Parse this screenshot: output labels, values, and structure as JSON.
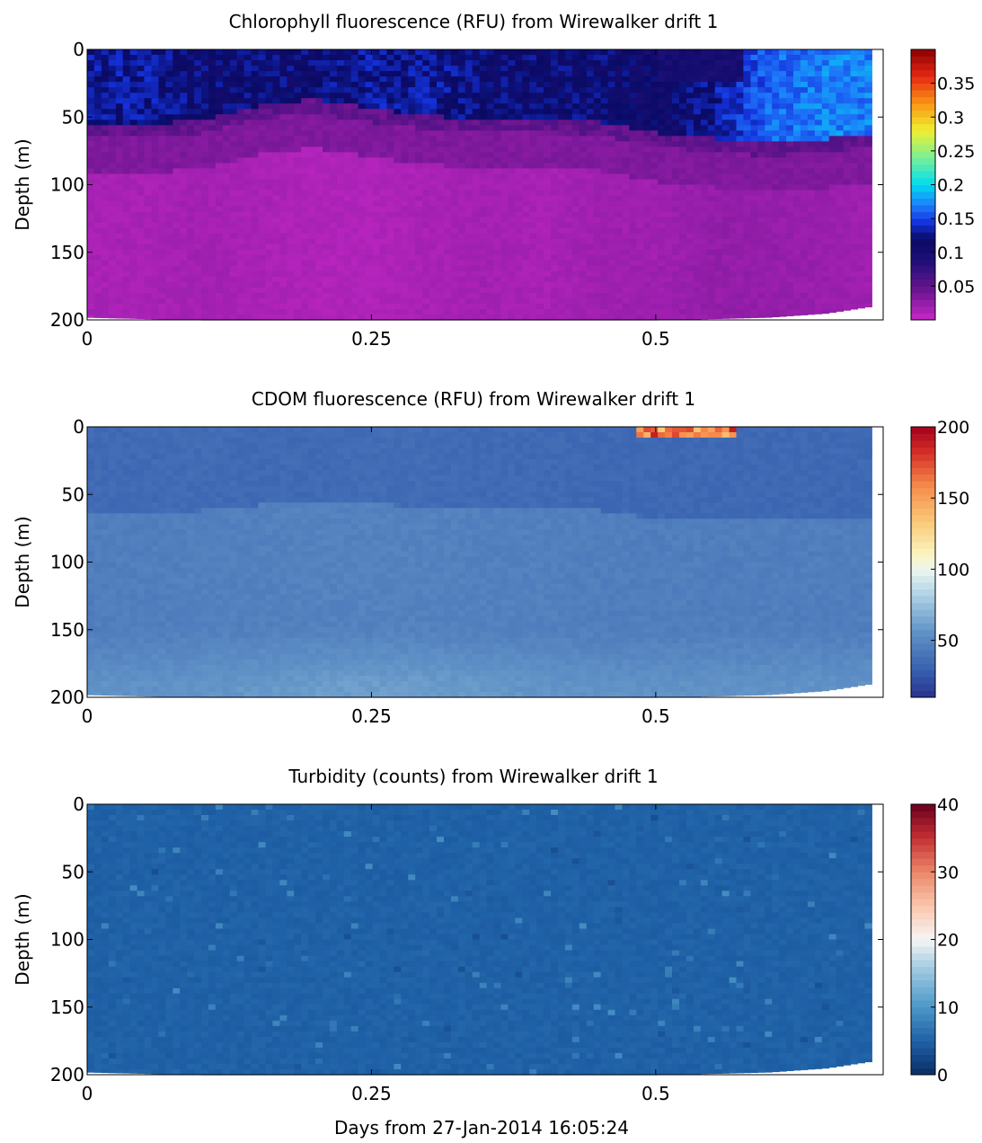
{
  "figure": {
    "xlabel": "Days from 27-Jan-2014 16:05:24"
  },
  "chart_data": [
    {
      "type": "heatmap",
      "title": "Chlorophyll fluorescence (RFU) from Wirewalker drift 1",
      "xlabel": "",
      "ylabel": "Depth (m)",
      "xlim": [
        0,
        0.7
      ],
      "ylim": [
        200,
        0
      ],
      "y_reversed": true,
      "x_ticks": [
        0,
        0.25,
        0.5
      ],
      "x_tick_labels": [
        "0",
        "0.25",
        "0.5"
      ],
      "y_ticks": [
        0,
        50,
        100,
        150,
        200
      ],
      "y_tick_labels": [
        "0",
        "50",
        "100",
        "150",
        "200"
      ],
      "colorbar": {
        "colormap": "chlorophyll",
        "range": [
          0,
          0.4
        ],
        "ticks": [
          0.05,
          0.1,
          0.15,
          0.2,
          0.25,
          0.3,
          0.35
        ],
        "tick_labels": [
          "0.05",
          "0.1",
          "0.15",
          "0.2",
          "0.25",
          "0.3",
          "0.35"
        ]
      },
      "profiles": {
        "x": [
          0.0,
          0.05,
          0.1,
          0.15,
          0.2,
          0.25,
          0.3,
          0.35,
          0.4,
          0.45,
          0.5,
          0.55,
          0.6,
          0.65,
          0.69
        ],
        "max_depth": [
          198,
          199,
          200,
          200,
          200,
          200,
          200,
          200,
          200,
          200,
          200,
          199,
          198,
          195,
          190
        ],
        "layer_depth": [
          60,
          62,
          58,
          48,
          43,
          50,
          55,
          58,
          57,
          60,
          68,
          72,
          75,
          72,
          68
        ],
        "surface_value": [
          0.13,
          0.13,
          0.12,
          0.12,
          0.12,
          0.13,
          0.13,
          0.12,
          0.12,
          0.12,
          0.11,
          0.13,
          0.16,
          0.17,
          0.17
        ],
        "deep_value": [
          0.015,
          0.015,
          0.018,
          0.015,
          0.012,
          0.012,
          0.015,
          0.018,
          0.015,
          0.02,
          0.02,
          0.025,
          0.025,
          0.022,
          0.02
        ]
      },
      "surface_patch": {
        "x": [
          0.5,
          0.58
        ],
        "value": 0.1
      }
    },
    {
      "type": "heatmap",
      "title": "CDOM fluorescence (RFU) from Wirewalker drift 1",
      "xlabel": "",
      "ylabel": "Depth (m)",
      "xlim": [
        0,
        0.7
      ],
      "ylim": [
        200,
        0
      ],
      "y_reversed": true,
      "x_ticks": [
        0,
        0.25,
        0.5
      ],
      "x_tick_labels": [
        "0",
        "0.25",
        "0.5"
      ],
      "y_ticks": [
        0,
        50,
        100,
        150,
        200
      ],
      "y_tick_labels": [
        "0",
        "50",
        "100",
        "150",
        "200"
      ],
      "colorbar": {
        "colormap": "diverging_rdylbu",
        "range": [
          10,
          200
        ],
        "ticks": [
          50,
          100,
          150,
          200
        ],
        "tick_labels": [
          "50",
          "100",
          "150",
          "200"
        ]
      },
      "profiles": {
        "x": [
          0.0,
          0.05,
          0.1,
          0.15,
          0.2,
          0.25,
          0.3,
          0.35,
          0.4,
          0.45,
          0.5,
          0.55,
          0.6,
          0.65,
          0.69
        ],
        "max_depth": [
          198,
          199,
          200,
          200,
          200,
          200,
          200,
          200,
          200,
          200,
          200,
          199,
          198,
          195,
          190
        ],
        "layer_depth": [
          65,
          65,
          62,
          58,
          55,
          57,
          60,
          62,
          60,
          62,
          68,
          70,
          70,
          70,
          68
        ],
        "surface_value": [
          35,
          35,
          36,
          35,
          35,
          36,
          36,
          35,
          35,
          34,
          34,
          34,
          34,
          34,
          34
        ],
        "mid_value": [
          45,
          45,
          46,
          46,
          47,
          47,
          47,
          46,
          46,
          45,
          45,
          45,
          45,
          45,
          45
        ],
        "deep_value": [
          55,
          55,
          56,
          58,
          60,
          60,
          60,
          58,
          56,
          55,
          55,
          55,
          55,
          55,
          55
        ]
      },
      "surface_patch": {
        "x": [
          0.48,
          0.57
        ],
        "depth": [
          0,
          8
        ],
        "value": 190
      }
    },
    {
      "type": "heatmap",
      "title": "Turbidity (counts) from Wirewalker drift 1",
      "xlabel": "Days from 27-Jan-2014 16:05:24",
      "ylabel": "Depth (m)",
      "xlim": [
        0,
        0.7
      ],
      "ylim": [
        200,
        0
      ],
      "y_reversed": true,
      "x_ticks": [
        0,
        0.25,
        0.5
      ],
      "x_tick_labels": [
        "0",
        "0.25",
        "0.5"
      ],
      "y_ticks": [
        0,
        50,
        100,
        150,
        200
      ],
      "y_tick_labels": [
        "0",
        "50",
        "100",
        "150",
        "200"
      ],
      "colorbar": {
        "colormap": "diverging_rdbu",
        "range": [
          0,
          40
        ],
        "ticks": [
          0,
          10,
          20,
          30,
          40
        ],
        "tick_labels": [
          "0",
          "10",
          "20",
          "30",
          "40"
        ]
      },
      "profiles": {
        "x": [
          0.0,
          0.05,
          0.1,
          0.15,
          0.2,
          0.25,
          0.3,
          0.35,
          0.4,
          0.45,
          0.5,
          0.55,
          0.6,
          0.65,
          0.69
        ],
        "max_depth": [
          198,
          199,
          200,
          200,
          200,
          200,
          200,
          200,
          200,
          200,
          200,
          199,
          198,
          195,
          190
        ],
        "value": [
          5,
          5,
          5,
          5,
          5,
          5,
          5,
          5,
          5,
          5,
          5,
          5,
          5,
          5,
          5
        ]
      }
    }
  ]
}
